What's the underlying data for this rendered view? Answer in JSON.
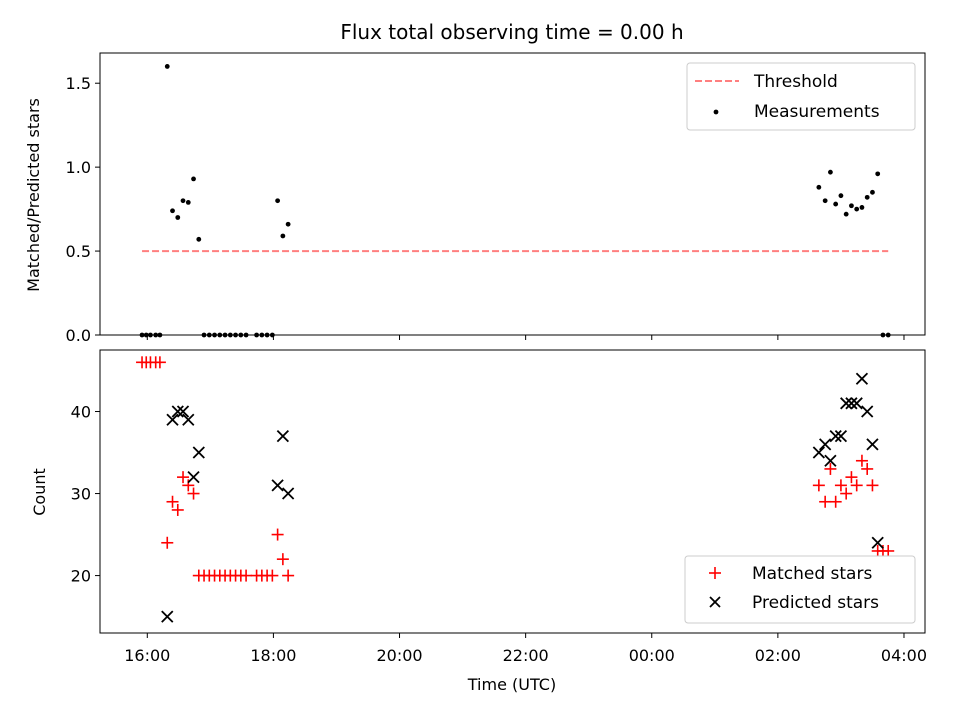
{
  "chart_data": [
    {
      "type": "scatter",
      "title": "Flux total observing time = 0.00 h",
      "xlabel": "",
      "ylabel": "Matched/Predicted stars",
      "ylim": [
        0,
        1.68
      ],
      "xlim": [
        "15:15",
        "04:20"
      ],
      "yticks": [
        {
          "value": 0.0,
          "label": "0.0"
        },
        {
          "value": 0.5,
          "label": "0.5"
        },
        {
          "value": 1.0,
          "label": "1.0"
        },
        {
          "value": 1.5,
          "label": "1.5"
        }
      ],
      "legend_position": "top-right",
      "threshold": {
        "name": "Threshold",
        "value": 0.5,
        "x": [
          "15:55",
          "03:45"
        ],
        "color": "#ff7f7f"
      },
      "series": [
        {
          "name": "Measurements",
          "color": "#000000",
          "marker": "dot",
          "points": [
            {
              "x": "15:55",
              "y": 0.0
            },
            {
              "x": "15:59",
              "y": 0.0
            },
            {
              "x": "16:03",
              "y": 0.0
            },
            {
              "x": "16:08",
              "y": 0.0
            },
            {
              "x": "16:12",
              "y": 0.0
            },
            {
              "x": "16:19",
              "y": 1.6
            },
            {
              "x": "16:24",
              "y": 0.74
            },
            {
              "x": "16:29",
              "y": 0.7
            },
            {
              "x": "16:34",
              "y": 0.8
            },
            {
              "x": "16:39",
              "y": 0.79
            },
            {
              "x": "16:44",
              "y": 0.93
            },
            {
              "x": "16:49",
              "y": 0.57
            },
            {
              "x": "16:54",
              "y": 0.0
            },
            {
              "x": "16:59",
              "y": 0.0
            },
            {
              "x": "17:04",
              "y": 0.0
            },
            {
              "x": "17:09",
              "y": 0.0
            },
            {
              "x": "17:14",
              "y": 0.0
            },
            {
              "x": "17:19",
              "y": 0.0
            },
            {
              "x": "17:24",
              "y": 0.0
            },
            {
              "x": "17:29",
              "y": 0.0
            },
            {
              "x": "17:34",
              "y": 0.0
            },
            {
              "x": "17:44",
              "y": 0.0
            },
            {
              "x": "17:49",
              "y": 0.0
            },
            {
              "x": "17:54",
              "y": 0.0
            },
            {
              "x": "17:59",
              "y": 0.0
            },
            {
              "x": "18:04",
              "y": 0.8
            },
            {
              "x": "18:09",
              "y": 0.59
            },
            {
              "x": "18:14",
              "y": 0.66
            },
            {
              "x": "02:39",
              "y": 0.88
            },
            {
              "x": "02:45",
              "y": 0.8
            },
            {
              "x": "02:50",
              "y": 0.97
            },
            {
              "x": "02:55",
              "y": 0.78
            },
            {
              "x": "03:00",
              "y": 0.83
            },
            {
              "x": "03:05",
              "y": 0.72
            },
            {
              "x": "03:10",
              "y": 0.77
            },
            {
              "x": "03:15",
              "y": 0.75
            },
            {
              "x": "03:20",
              "y": 0.76
            },
            {
              "x": "03:25",
              "y": 0.82
            },
            {
              "x": "03:30",
              "y": 0.85
            },
            {
              "x": "03:35",
              "y": 0.96
            },
            {
              "x": "03:40",
              "y": 0.0
            },
            {
              "x": "03:45",
              "y": 0.0
            }
          ]
        }
      ]
    },
    {
      "type": "scatter",
      "title": "",
      "xlabel": "Time (UTC)",
      "ylabel": "Count",
      "ylim": [
        13,
        47.5
      ],
      "xlim": [
        "15:15",
        "04:20"
      ],
      "xticks": [
        "16:00",
        "18:00",
        "20:00",
        "22:00",
        "00:00",
        "02:00",
        "04:00"
      ],
      "yticks": [
        {
          "value": 20,
          "label": "20"
        },
        {
          "value": 30,
          "label": "30"
        },
        {
          "value": 40,
          "label": "40"
        }
      ],
      "legend_position": "bottom-right",
      "series": [
        {
          "name": "Matched stars",
          "color": "#ff0000",
          "marker": "plus",
          "points": [
            {
              "x": "15:55",
              "y": 46
            },
            {
              "x": "15:59",
              "y": 46
            },
            {
              "x": "16:03",
              "y": 46
            },
            {
              "x": "16:08",
              "y": 46
            },
            {
              "x": "16:12",
              "y": 46
            },
            {
              "x": "16:19",
              "y": 24
            },
            {
              "x": "16:24",
              "y": 29
            },
            {
              "x": "16:29",
              "y": 28
            },
            {
              "x": "16:34",
              "y": 32
            },
            {
              "x": "16:39",
              "y": 31
            },
            {
              "x": "16:44",
              "y": 30
            },
            {
              "x": "16:49",
              "y": 20
            },
            {
              "x": "16:54",
              "y": 20
            },
            {
              "x": "16:59",
              "y": 20
            },
            {
              "x": "17:04",
              "y": 20
            },
            {
              "x": "17:09",
              "y": 20
            },
            {
              "x": "17:14",
              "y": 20
            },
            {
              "x": "17:19",
              "y": 20
            },
            {
              "x": "17:24",
              "y": 20
            },
            {
              "x": "17:29",
              "y": 20
            },
            {
              "x": "17:34",
              "y": 20
            },
            {
              "x": "17:44",
              "y": 20
            },
            {
              "x": "17:49",
              "y": 20
            },
            {
              "x": "17:54",
              "y": 20
            },
            {
              "x": "17:59",
              "y": 20
            },
            {
              "x": "18:04",
              "y": 25
            },
            {
              "x": "18:09",
              "y": 22
            },
            {
              "x": "18:14",
              "y": 20
            },
            {
              "x": "02:39",
              "y": 31
            },
            {
              "x": "02:45",
              "y": 29
            },
            {
              "x": "02:50",
              "y": 33
            },
            {
              "x": "02:55",
              "y": 29
            },
            {
              "x": "03:00",
              "y": 31
            },
            {
              "x": "03:05",
              "y": 30
            },
            {
              "x": "03:10",
              "y": 32
            },
            {
              "x": "03:15",
              "y": 31
            },
            {
              "x": "03:20",
              "y": 34
            },
            {
              "x": "03:25",
              "y": 33
            },
            {
              "x": "03:30",
              "y": 31
            },
            {
              "x": "03:35",
              "y": 23
            },
            {
              "x": "03:40",
              "y": 23
            },
            {
              "x": "03:45",
              "y": 23
            }
          ]
        },
        {
          "name": "Predicted stars",
          "color": "#000000",
          "marker": "x",
          "points": [
            {
              "x": "16:19",
              "y": 15
            },
            {
              "x": "16:24",
              "y": 39
            },
            {
              "x": "16:29",
              "y": 40
            },
            {
              "x": "16:34",
              "y": 40
            },
            {
              "x": "16:39",
              "y": 39
            },
            {
              "x": "16:44",
              "y": 32
            },
            {
              "x": "16:49",
              "y": 35
            },
            {
              "x": "18:04",
              "y": 31
            },
            {
              "x": "18:09",
              "y": 37
            },
            {
              "x": "18:14",
              "y": 30
            },
            {
              "x": "02:39",
              "y": 35
            },
            {
              "x": "02:45",
              "y": 36
            },
            {
              "x": "02:50",
              "y": 34
            },
            {
              "x": "02:55",
              "y": 37
            },
            {
              "x": "03:00",
              "y": 37
            },
            {
              "x": "03:05",
              "y": 41
            },
            {
              "x": "03:10",
              "y": 41
            },
            {
              "x": "03:15",
              "y": 41
            },
            {
              "x": "03:20",
              "y": 44
            },
            {
              "x": "03:25",
              "y": 40
            },
            {
              "x": "03:30",
              "y": 36
            },
            {
              "x": "03:35",
              "y": 24
            }
          ]
        }
      ]
    }
  ]
}
